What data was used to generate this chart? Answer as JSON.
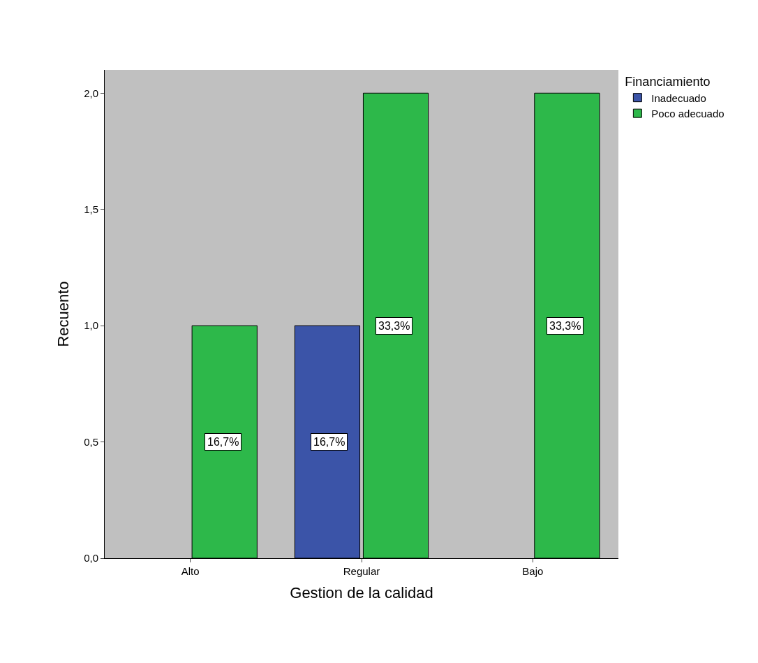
{
  "chart_data": {
    "type": "bar",
    "xlabel": "Gestion de la calidad",
    "ylabel": "Recuento",
    "legend_title": "Financiamiento",
    "legend": "top right",
    "grid": false,
    "categories": [
      "Alto",
      "Regular",
      "Bajo"
    ],
    "series": [
      {
        "name": "Inadecuado",
        "color": "#3b54a8",
        "values": [
          null,
          1,
          null
        ]
      },
      {
        "name": "Poco adecuado",
        "color": "#2db84a",
        "values": [
          1,
          2,
          2
        ]
      }
    ],
    "annotations": [
      {
        "text": "16,7%",
        "x": "Alto",
        "y": 0.5
      },
      {
        "text": "16,7%",
        "x": "Regular",
        "y": 0.5
      },
      {
        "text": "33,3%",
        "x": "Regular",
        "y": 1
      },
      {
        "text": "33,3%",
        "x": "Bajo",
        "y": 1
      }
    ],
    "ylim": [
      0,
      2.1
    ],
    "yticks": [
      {
        "value": 0,
        "label": "0,0"
      },
      {
        "value": 0.5,
        "label": "0,5"
      },
      {
        "value": 1,
        "label": "1,0"
      },
      {
        "value": 1.5,
        "label": "1,5"
      },
      {
        "value": 2,
        "label": "2,0"
      }
    ]
  }
}
